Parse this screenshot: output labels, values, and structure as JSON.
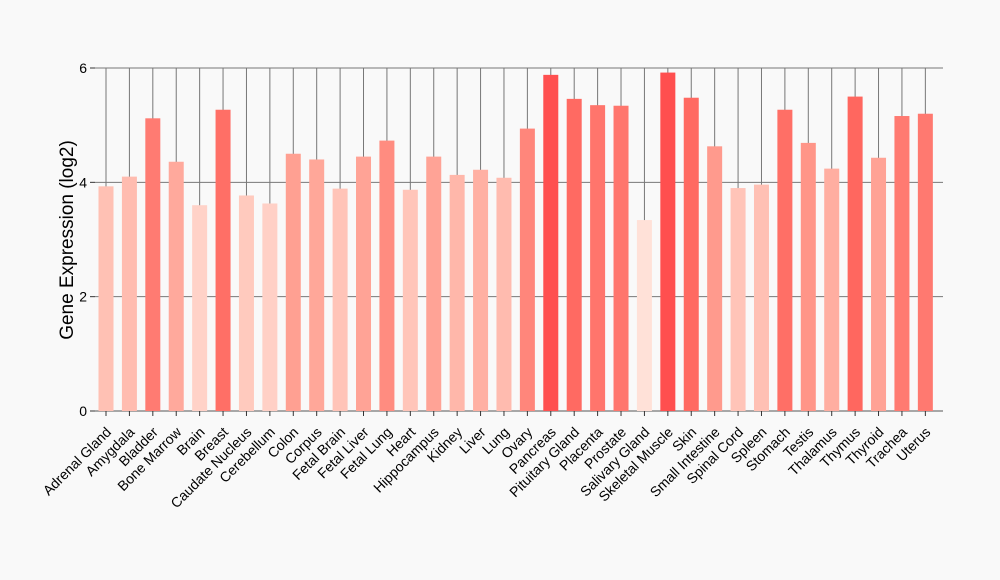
{
  "chart_data": {
    "type": "bar",
    "title": "",
    "xlabel": "",
    "ylabel": "Gene Expression (log2)",
    "ylim": [
      0,
      6
    ],
    "yticks": [
      0,
      2,
      4,
      6
    ],
    "grid": true,
    "categories": [
      "Adrenal Gland",
      "Amygdala",
      "Bladder",
      "Bone Marrow",
      "Brain",
      "Breast",
      "Caudate Nucleus",
      "Cerebellum",
      "Colon",
      "Corpus",
      "Fetal Brain",
      "Fetal Liver",
      "Fetal Lung",
      "Heart",
      "Hippocampus",
      "Kidney",
      "Liver",
      "Lung",
      "Ovary",
      "Pancreas",
      "Pituitary Gland",
      "Placenta",
      "Prostate",
      "Salivary Gland",
      "Skeletal Muscle",
      "Skin",
      "Small Intestine",
      "Spinal Cord",
      "Spleen",
      "Stomach",
      "Testis",
      "Thalamus",
      "Thymus",
      "Thyroid",
      "Trachea",
      "Uterus"
    ],
    "values": [
      3.93,
      4.1,
      5.12,
      4.36,
      3.6,
      5.27,
      3.77,
      3.63,
      4.5,
      4.4,
      3.89,
      4.45,
      4.73,
      3.87,
      4.45,
      4.13,
      4.22,
      4.08,
      4.94,
      5.88,
      5.46,
      5.35,
      5.34,
      3.34,
      5.92,
      5.48,
      4.63,
      3.9,
      3.96,
      5.27,
      4.69,
      4.24,
      5.5,
      4.43,
      5.16,
      5.2
    ],
    "colors": [
      "#ffc1b4",
      "#ffbcb0",
      "#ff7b72",
      "#ffa99c",
      "#ffd2c8",
      "#ff6f66",
      "#ffcabe",
      "#ffd0c6",
      "#ffa092",
      "#ffa799",
      "#ffc4b8",
      "#ffa396",
      "#ff8c80",
      "#ffc5b9",
      "#ffa396",
      "#ffb7aa",
      "#ffb0a3",
      "#ffbbaf",
      "#ff867b",
      "#ff5050",
      "#ff6a62",
      "#ff756c",
      "#ff766d",
      "#ffe1d8",
      "#ff4f4f",
      "#ff6961",
      "#ff9a8d",
      "#ffc4b8",
      "#ffc0b4",
      "#ff6f66",
      "#ff9588",
      "#ffaea1",
      "#ff675f",
      "#ffa295",
      "#ff7a71",
      "#ff7970"
    ],
    "grid_color": "#777777",
    "baseline_color": "#555555"
  }
}
